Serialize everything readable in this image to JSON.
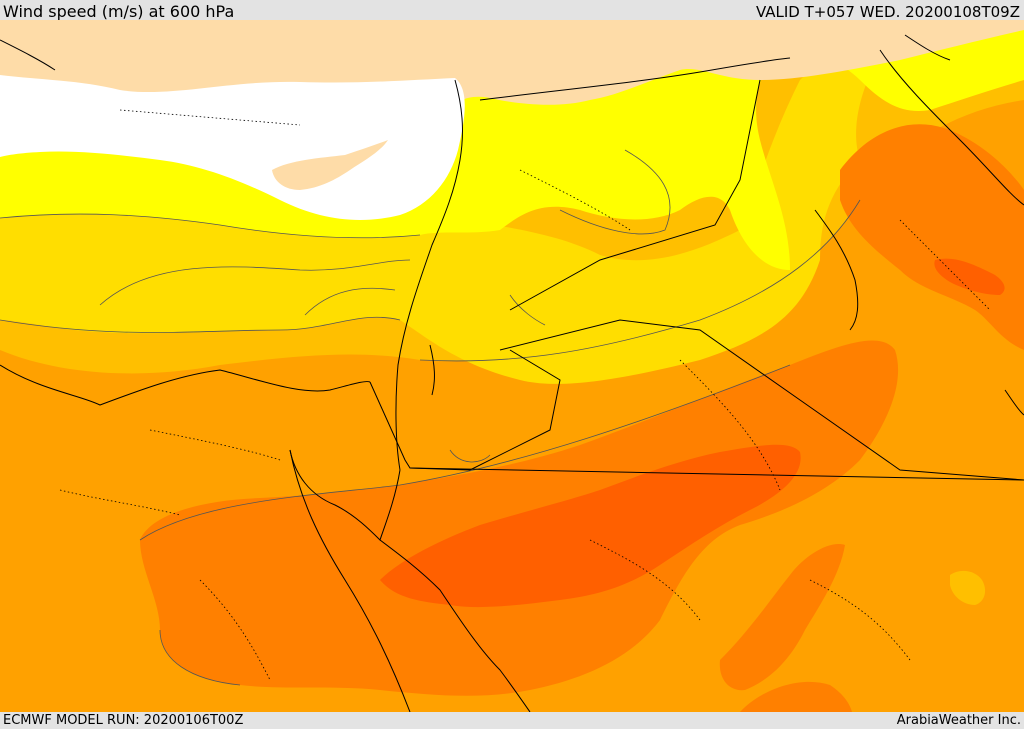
{
  "header": {
    "title": "Wind speed (m/s) at 600 hPa",
    "valid": "VALID T+057 WED. 20200108T09Z"
  },
  "footer": {
    "model_run": "ECMWF MODEL RUN: 20200106T00Z",
    "credit": "ArabiaWeather Inc."
  },
  "map": {
    "colors": {
      "calm": "#ffffff",
      "pale": "#fedca8",
      "yellow": "#ffff00",
      "gold": "#ffde00",
      "amber": "#ffbf00",
      "orange": "#ffa100",
      "dark_orange": "#ff8000",
      "red_orange": "#ff6000",
      "border": "#000000",
      "contour": "#555555"
    }
  }
}
